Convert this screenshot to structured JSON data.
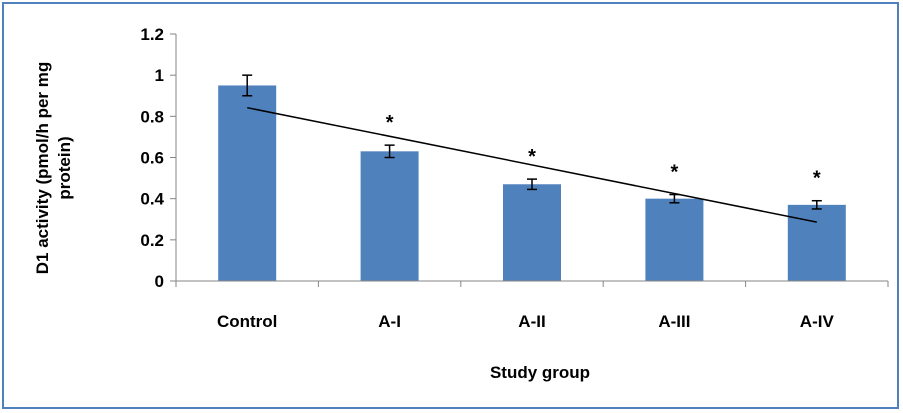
{
  "chart_data": {
    "type": "bar",
    "title": "",
    "categories": [
      "Control",
      "A-I",
      "A-II",
      "A-III",
      "A-IV"
    ],
    "values": [
      0.95,
      0.63,
      0.47,
      0.4,
      0.37
    ],
    "errors": [
      0.05,
      0.03,
      0.025,
      0.02,
      0.02
    ],
    "annotations": [
      "",
      "*",
      "*",
      "*",
      "*"
    ],
    "trendline": {
      "type": "linear",
      "visible": true
    },
    "xlabel": "Study group",
    "ylabel_lines": [
      "D1 activity (pmol/h per mg",
      "protein)"
    ],
    "ylim": [
      0,
      1.2
    ],
    "yticks": [
      "0",
      "0.2",
      "0.4",
      "0.6",
      "0.8",
      "1",
      "1.2"
    ],
    "grid": false,
    "legend": "none",
    "colors": {
      "bar": "#4f81bd",
      "frame": "#4f81bd",
      "axis": "#868686",
      "error": "#000000",
      "trend": "#000000"
    }
  }
}
